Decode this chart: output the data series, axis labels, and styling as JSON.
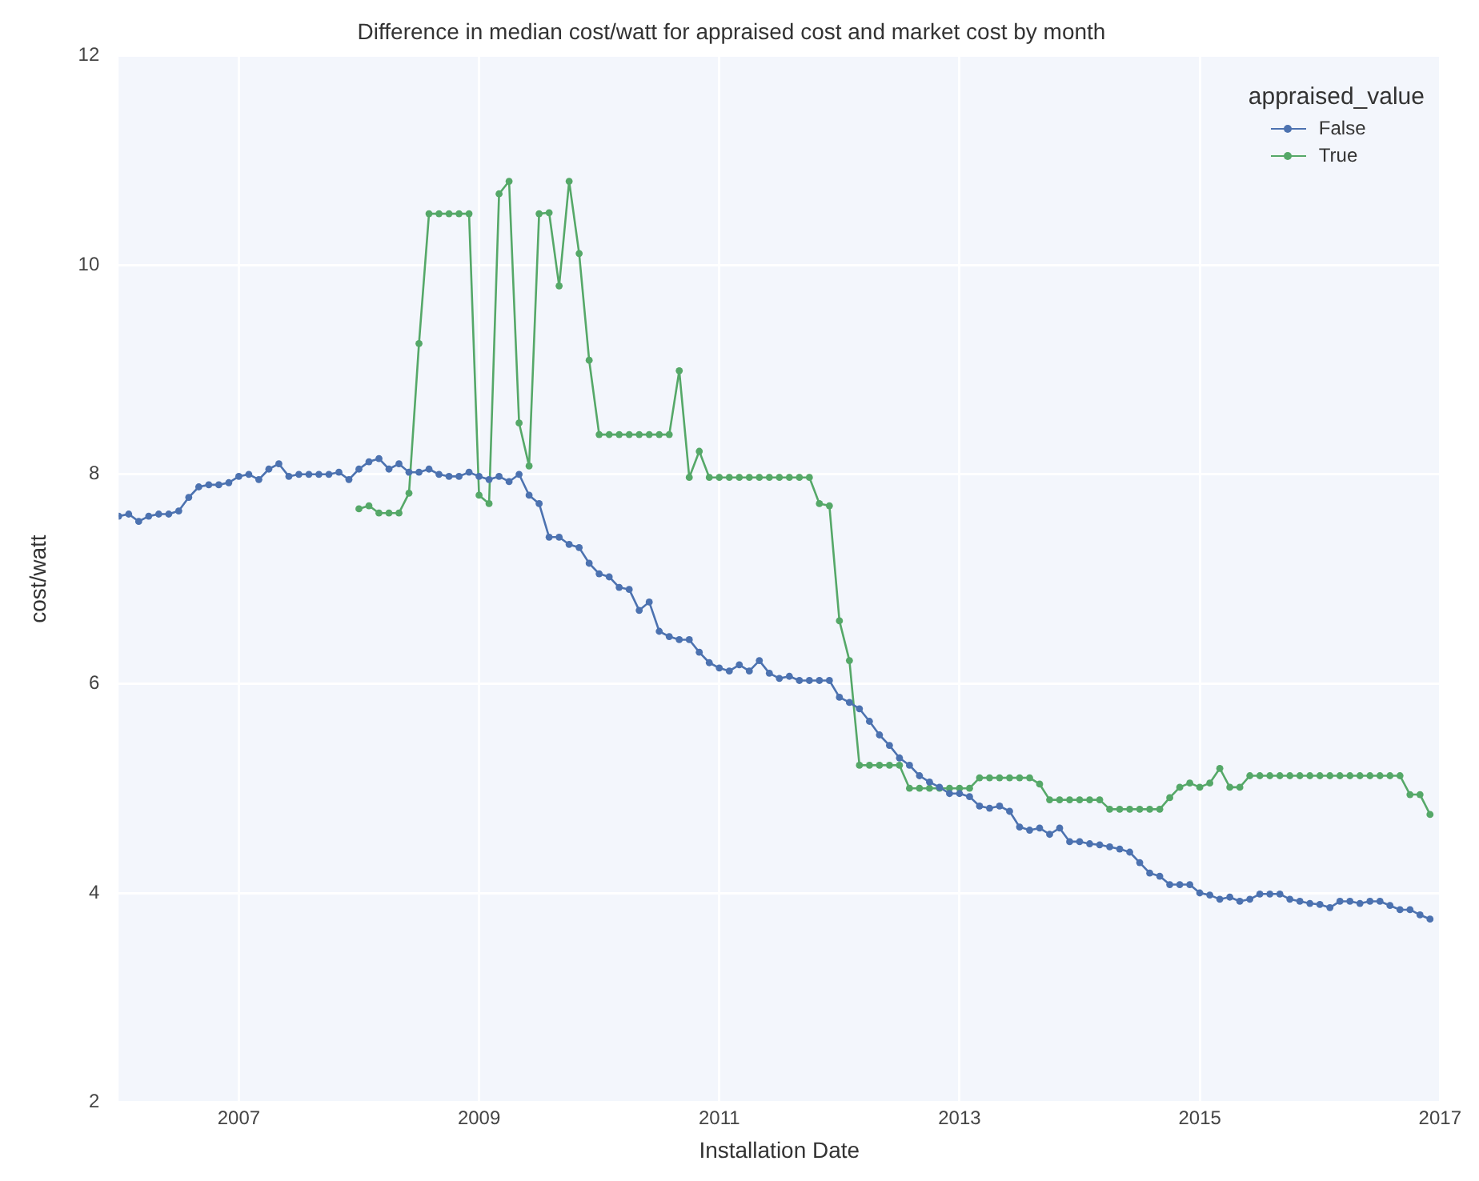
{
  "chart_data": {
    "type": "line",
    "title": "Difference in median cost/watt for appraised cost and market cost by month",
    "xlabel": "Installation Date",
    "ylabel": "cost/watt",
    "legend_title": "appraised_value",
    "x": [
      "2006-01",
      "2006-02",
      "2006-03",
      "2006-04",
      "2006-05",
      "2006-06",
      "2006-07",
      "2006-08",
      "2006-09",
      "2006-10",
      "2006-11",
      "2006-12",
      "2007-01",
      "2007-02",
      "2007-03",
      "2007-04",
      "2007-05",
      "2007-06",
      "2007-07",
      "2007-08",
      "2007-09",
      "2007-10",
      "2007-11",
      "2007-12",
      "2008-01",
      "2008-02",
      "2008-03",
      "2008-04",
      "2008-05",
      "2008-06",
      "2008-07",
      "2008-08",
      "2008-09",
      "2008-10",
      "2008-11",
      "2008-12",
      "2009-01",
      "2009-02",
      "2009-03",
      "2009-04",
      "2009-05",
      "2009-06",
      "2009-07",
      "2009-08",
      "2009-09",
      "2009-10",
      "2009-11",
      "2009-12",
      "2010-01",
      "2010-02",
      "2010-03",
      "2010-04",
      "2010-05",
      "2010-06",
      "2010-07",
      "2010-08",
      "2010-09",
      "2010-10",
      "2010-11",
      "2010-12",
      "2011-01",
      "2011-02",
      "2011-03",
      "2011-04",
      "2011-05",
      "2011-06",
      "2011-07",
      "2011-08",
      "2011-09",
      "2011-10",
      "2011-11",
      "2011-12",
      "2012-01",
      "2012-02",
      "2012-03",
      "2012-04",
      "2012-05",
      "2012-06",
      "2012-07",
      "2012-08",
      "2012-09",
      "2012-10",
      "2012-11",
      "2012-12",
      "2013-01",
      "2013-02",
      "2013-03",
      "2013-04",
      "2013-05",
      "2013-06",
      "2013-07",
      "2013-08",
      "2013-09",
      "2013-10",
      "2013-11",
      "2013-12",
      "2014-01",
      "2014-02",
      "2014-03",
      "2014-04",
      "2014-05",
      "2014-06",
      "2014-07",
      "2014-08",
      "2014-09",
      "2014-10",
      "2014-11",
      "2014-12",
      "2015-01",
      "2015-02",
      "2015-03",
      "2015-04",
      "2015-05",
      "2015-06",
      "2015-07",
      "2015-08",
      "2015-09",
      "2015-10",
      "2015-11",
      "2015-12",
      "2016-01",
      "2016-02",
      "2016-03",
      "2016-04",
      "2016-05",
      "2016-06",
      "2016-07",
      "2016-08",
      "2016-09",
      "2016-10",
      "2016-11",
      "2016-12"
    ],
    "series": [
      {
        "name": "False",
        "color": "#4c72b0",
        "values": [
          7.6,
          7.62,
          7.55,
          7.6,
          7.62,
          7.62,
          7.65,
          7.78,
          7.88,
          7.9,
          7.9,
          7.92,
          7.98,
          8.0,
          7.95,
          8.05,
          8.1,
          7.98,
          8.0,
          8.0,
          8.0,
          8.0,
          8.02,
          7.95,
          8.05,
          8.12,
          8.15,
          8.05,
          8.1,
          8.02,
          8.02,
          8.05,
          8.0,
          7.98,
          7.98,
          8.02,
          7.98,
          7.95,
          7.98,
          7.93,
          8.0,
          7.8,
          7.72,
          7.4,
          7.4,
          7.33,
          7.3,
          7.15,
          7.05,
          7.02,
          6.92,
          6.9,
          6.7,
          6.78,
          6.5,
          6.45,
          6.42,
          6.42,
          6.3,
          6.2,
          6.15,
          6.12,
          6.18,
          6.12,
          6.22,
          6.1,
          6.05,
          6.07,
          6.03,
          6.03,
          6.03,
          6.03,
          5.87,
          5.82,
          5.76,
          5.64,
          5.51,
          5.41,
          5.29,
          5.22,
          5.12,
          5.06,
          5.01,
          4.95,
          4.95,
          4.92,
          4.83,
          4.81,
          4.83,
          4.78,
          4.63,
          4.6,
          4.62,
          4.56,
          4.62,
          4.49,
          4.49,
          4.47,
          4.46,
          4.44,
          4.42,
          4.39,
          4.29,
          4.19,
          4.16,
          4.08,
          4.08,
          4.08,
          4.0,
          3.98,
          3.94,
          3.96,
          3.92,
          3.94,
          3.99,
          3.99,
          3.99,
          3.94,
          3.92,
          3.9,
          3.89,
          3.86,
          3.92,
          3.92,
          3.9,
          3.92,
          3.92,
          3.88,
          3.84,
          3.84,
          3.79,
          3.75
        ]
      },
      {
        "name": "True",
        "color": "#55a868",
        "values": [
          null,
          null,
          null,
          null,
          null,
          null,
          null,
          null,
          null,
          null,
          null,
          null,
          null,
          null,
          null,
          null,
          null,
          null,
          null,
          null,
          null,
          null,
          null,
          null,
          7.67,
          7.7,
          7.63,
          7.63,
          7.63,
          7.82,
          9.25,
          10.49,
          10.49,
          10.49,
          10.49,
          10.49,
          7.8,
          7.72,
          10.68,
          10.8,
          8.49,
          8.08,
          10.49,
          10.5,
          9.8,
          10.8,
          10.11,
          9.09,
          8.38,
          8.38,
          8.38,
          8.38,
          8.38,
          8.38,
          8.38,
          8.38,
          8.99,
          7.97,
          8.22,
          7.97,
          7.97,
          7.97,
          7.97,
          7.97,
          7.97,
          7.97,
          7.97,
          7.97,
          7.97,
          7.97,
          7.72,
          7.7,
          6.6,
          6.22,
          5.22,
          5.22,
          5.22,
          5.22,
          5.22,
          5.0,
          5.0,
          5.0,
          5.0,
          5.0,
          5.0,
          5.0,
          5.1,
          5.1,
          5.1,
          5.1,
          5.1,
          5.1,
          5.04,
          4.89,
          4.89,
          4.89,
          4.89,
          4.89,
          4.89,
          4.8,
          4.8,
          4.8,
          4.8,
          4.8,
          4.8,
          4.91,
          5.01,
          5.05,
          5.01,
          5.05,
          5.19,
          5.01,
          5.01,
          5.12,
          5.12,
          5.12,
          5.12,
          5.12,
          5.12,
          5.12,
          5.12,
          5.12,
          5.12,
          5.12,
          5.12,
          5.12,
          5.12,
          5.12,
          5.12,
          4.94,
          4.94,
          4.75
        ]
      }
    ],
    "xlim": [
      "2006-01",
      "2017-01"
    ],
    "xticks": [
      "2007",
      "2009",
      "2011",
      "2013",
      "2015",
      "2017"
    ],
    "ylim": [
      2,
      12
    ],
    "yticks": [
      2,
      4,
      6,
      8,
      10,
      12
    ],
    "grid": true,
    "legend": "top right",
    "marker": "circle",
    "line_style": "solid"
  }
}
